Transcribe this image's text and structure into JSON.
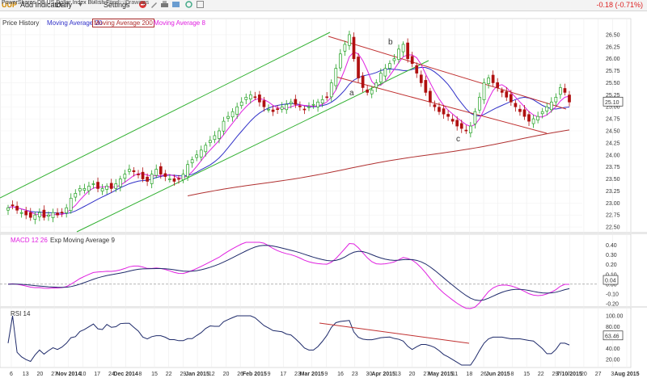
{
  "toolbar": {
    "symbol": "UUP",
    "add_indicator": "Add Indicator",
    "period": "Daily",
    "settings": "Settings",
    "change": "-0.18 (-0.71%)"
  },
  "subbar": {
    "full_name": "PowerShares DB US Dollar Index Bullish Fund",
    "add_portfolio": "Add to Portfolio",
    "drawings": "Drawings"
  },
  "legend": {
    "price": "Price History",
    "ma20": "Moving Average 20",
    "ma200": "Moving Average 200",
    "ma8": "Moving Average 8",
    "macd": "MACD 12 26",
    "ema9": "Exp Moving Average 9",
    "rsi": "RSI 14"
  },
  "colors": {
    "up": "#22a022",
    "down": "#b01010",
    "ma20": "#3030c8",
    "ma200": "#b03030",
    "ma8": "#e020e0",
    "channel": "#30b030",
    "down_channel": "#c03030"
  },
  "chart_data": [
    {
      "type": "candlestick",
      "title": "UUP",
      "x_ticks": [
        "6",
        "13",
        "20",
        "27",
        "Nov 2014",
        "10",
        "17",
        "24",
        "Dec 2014",
        "8",
        "15",
        "22",
        "29",
        "Jan 2015",
        "12",
        "20",
        "26",
        "Feb 2015",
        "9",
        "17",
        "23",
        "Mar 2015",
        "9",
        "16",
        "23",
        "30",
        "Apr 2015",
        "13",
        "20",
        "27",
        "May 2015",
        "11",
        "18",
        "26",
        "Jun 2015",
        "8",
        "15",
        "22",
        "29",
        "7/10/2015",
        "20",
        "27",
        "3",
        "Aug 2015"
      ],
      "y_ticks": [
        "26.50",
        "26.25",
        "26.00",
        "25.75",
        "25.50",
        "25.25",
        "25.00",
        "24.75",
        "24.50",
        "24.25",
        "24.00",
        "23.75",
        "23.50",
        "23.25",
        "23.00",
        "22.75",
        "22.50"
      ],
      "ylim": [
        22.4,
        26.6
      ],
      "last_value": "25.10",
      "annotations": [
        "a",
        "b",
        "c"
      ],
      "close": [
        22.9,
        22.95,
        22.85,
        22.8,
        22.75,
        22.7,
        22.75,
        22.8,
        22.7,
        22.75,
        22.8,
        22.75,
        22.8,
        22.9,
        23.1,
        23.2,
        23.3,
        23.3,
        23.35,
        23.4,
        23.3,
        23.3,
        23.35,
        23.3,
        23.4,
        23.5,
        23.6,
        23.7,
        23.65,
        23.6,
        23.5,
        23.45,
        23.6,
        23.7,
        23.6,
        23.55,
        23.5,
        23.45,
        23.5,
        23.6,
        23.8,
        23.9,
        24.0,
        24.1,
        24.2,
        24.3,
        24.4,
        24.5,
        24.7,
        24.8,
        24.9,
        25.0,
        25.1,
        25.2,
        25.25,
        25.2,
        25.1,
        25.0,
        24.95,
        24.9,
        24.95,
        25.0,
        25.05,
        25.1,
        25.05,
        25.0,
        24.95,
        25.0,
        25.05,
        25.1,
        25.15,
        25.2,
        25.5,
        25.8,
        26.1,
        26.3,
        26.5,
        26.0,
        25.6,
        25.4,
        25.3,
        25.35,
        25.5,
        25.7,
        25.8,
        25.9,
        26.0,
        26.2,
        26.3,
        26.0,
        25.9,
        25.7,
        25.5,
        25.3,
        25.1,
        25.0,
        24.9,
        24.85,
        24.8,
        24.7,
        24.6,
        24.55,
        24.5,
        24.6,
        24.9,
        25.2,
        25.5,
        25.6,
        25.5,
        25.4,
        25.3,
        25.2,
        25.1,
        25.0,
        24.9,
        24.8,
        24.7,
        24.75,
        24.8,
        24.9,
        25.0,
        25.1,
        25.2,
        25.4,
        25.3,
        25.1
      ]
    },
    {
      "type": "line",
      "title": "MACD 12 26",
      "series": [
        {
          "name": "MACD 12 26"
        },
        {
          "name": "Exp Moving Average 9"
        }
      ],
      "y_ticks": [
        "0.40",
        "0.30",
        "0.20",
        "0.10",
        "0.00",
        "-0.10",
        "-0.20"
      ],
      "ylim": [
        -0.25,
        0.43
      ],
      "last_value": "0.04"
    },
    {
      "type": "line",
      "title": "RSI 14",
      "series": [
        {
          "name": "RSI 14"
        }
      ],
      "y_ticks": [
        "100.00",
        "80.00",
        "60.00",
        "40.00",
        "20.00"
      ],
      "ylim": [
        10,
        100
      ],
      "last_value": "63.46"
    }
  ]
}
